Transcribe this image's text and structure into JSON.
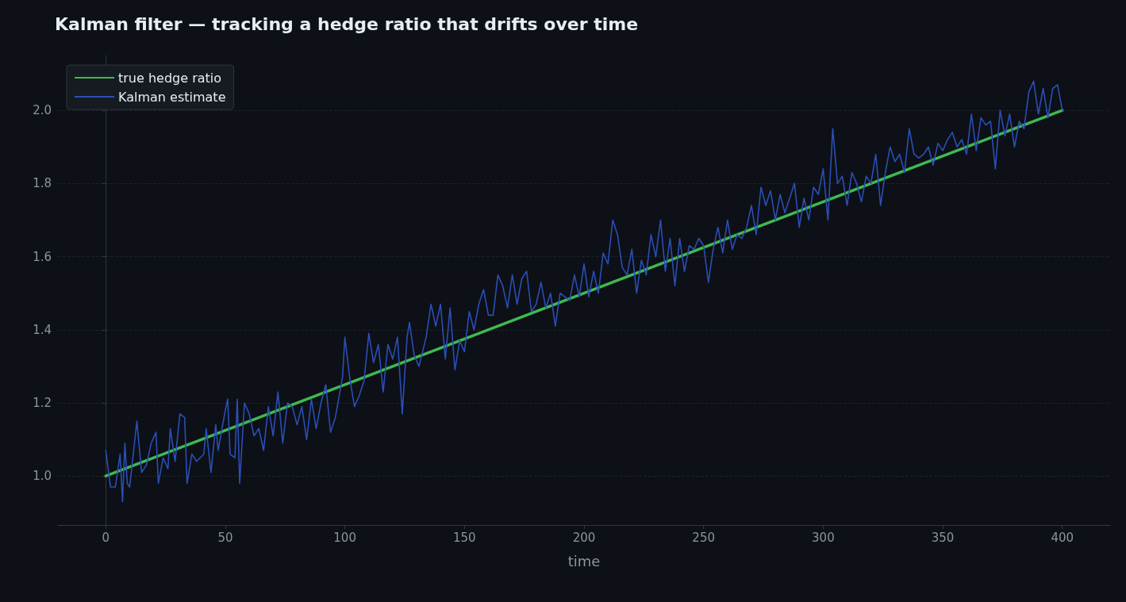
{
  "chart_data": {
    "type": "line",
    "title": "Kalman filter — tracking a hedge ratio that drifts over time",
    "xlabel": "time",
    "xlim": [
      -20,
      420
    ],
    "xticks": [
      0,
      50,
      100,
      150,
      200,
      250,
      300,
      350,
      400
    ],
    "ylim": [
      0.866,
      2.15
    ],
    "yticks": [
      {
        "value": 1,
        "label": "1.0"
      },
      {
        "value": 1.2,
        "label": "1.2"
      },
      {
        "value": 1.4,
        "label": "1.4"
      },
      {
        "value": 1.6,
        "label": "1.6"
      },
      {
        "value": 1.8,
        "label": "1.8"
      },
      {
        "value": 2,
        "label": "2.0"
      }
    ],
    "grid": "y",
    "legend": "top left",
    "series": [
      {
        "name": "true hedge ratio",
        "color": "#3fb950",
        "x": [
          0,
          400
        ],
        "values": [
          1,
          2
        ]
      },
      {
        "name": "Kalman estimate",
        "color": "#2a4fb5",
        "x": [
          0,
          2,
          4,
          6,
          7,
          8,
          9,
          10,
          13,
          15,
          17,
          19,
          21,
          22,
          24,
          26,
          27,
          29,
          31,
          33,
          34,
          36,
          38,
          41,
          42,
          44,
          46,
          47,
          50,
          51,
          52,
          54,
          55,
          56,
          58,
          60,
          62,
          64,
          66,
          68,
          70,
          72,
          74,
          76,
          78,
          80,
          82,
          84,
          86,
          88,
          90,
          92,
          94,
          96,
          99,
          100,
          102,
          104,
          106,
          108,
          110,
          112,
          114,
          116,
          118,
          120,
          122,
          124,
          126,
          127,
          129,
          131,
          134,
          136,
          138,
          140,
          142,
          144,
          146,
          148,
          150,
          152,
          154,
          156,
          158,
          160,
          162,
          164,
          166,
          168,
          170,
          172,
          174,
          176,
          178,
          180,
          182,
          184,
          186,
          188,
          190,
          194,
          196,
          198,
          200,
          202,
          204,
          206,
          208,
          210,
          212,
          214,
          216,
          218,
          220,
          222,
          224,
          226,
          228,
          230,
          232,
          234,
          236,
          238,
          240,
          242,
          244,
          246,
          248,
          250,
          252,
          254,
          256,
          258,
          260,
          262,
          264,
          266,
          268,
          270,
          272,
          274,
          276,
          278,
          280,
          282,
          284,
          286,
          288,
          290,
          292,
          294,
          296,
          298,
          300,
          302,
          304,
          306,
          308,
          310,
          312,
          314,
          316,
          318,
          320,
          322,
          324,
          326,
          328,
          330,
          332,
          334,
          336,
          338,
          340,
          342,
          344,
          346,
          348,
          350,
          352,
          354,
          356,
          358,
          360,
          362,
          364,
          366,
          368,
          370,
          372,
          374,
          376,
          378,
          380,
          382,
          384,
          386,
          388,
          390,
          392,
          394,
          396,
          398,
          400
        ],
        "values": [
          1.07,
          0.97,
          0.97,
          1.06,
          0.93,
          1.09,
          0.98,
          0.97,
          1.15,
          1.01,
          1.03,
          1.09,
          1.12,
          0.98,
          1.05,
          1.02,
          1.13,
          1.04,
          1.17,
          1.16,
          0.98,
          1.06,
          1.04,
          1.06,
          1.13,
          1.01,
          1.14,
          1.07,
          1.18,
          1.21,
          1.06,
          1.05,
          1.21,
          0.98,
          1.2,
          1.17,
          1.11,
          1.13,
          1.07,
          1.19,
          1.11,
          1.23,
          1.09,
          1.2,
          1.19,
          1.14,
          1.19,
          1.1,
          1.21,
          1.13,
          1.2,
          1.25,
          1.12,
          1.16,
          1.27,
          1.38,
          1.27,
          1.19,
          1.22,
          1.26,
          1.39,
          1.31,
          1.36,
          1.23,
          1.36,
          1.32,
          1.38,
          1.17,
          1.38,
          1.42,
          1.33,
          1.3,
          1.38,
          1.47,
          1.41,
          1.47,
          1.32,
          1.46,
          1.29,
          1.37,
          1.34,
          1.45,
          1.4,
          1.47,
          1.51,
          1.44,
          1.44,
          1.55,
          1.52,
          1.46,
          1.55,
          1.47,
          1.54,
          1.56,
          1.45,
          1.47,
          1.53,
          1.46,
          1.5,
          1.41,
          1.5,
          1.48,
          1.55,
          1.49,
          1.58,
          1.49,
          1.56,
          1.5,
          1.61,
          1.58,
          1.7,
          1.66,
          1.57,
          1.55,
          1.62,
          1.5,
          1.59,
          1.55,
          1.66,
          1.6,
          1.7,
          1.56,
          1.65,
          1.52,
          1.65,
          1.56,
          1.63,
          1.62,
          1.65,
          1.63,
          1.53,
          1.62,
          1.68,
          1.61,
          1.7,
          1.62,
          1.66,
          1.65,
          1.68,
          1.74,
          1.66,
          1.79,
          1.74,
          1.78,
          1.7,
          1.77,
          1.72,
          1.76,
          1.8,
          1.68,
          1.76,
          1.7,
          1.79,
          1.77,
          1.84,
          1.7,
          1.95,
          1.8,
          1.82,
          1.74,
          1.83,
          1.8,
          1.75,
          1.82,
          1.8,
          1.88,
          1.74,
          1.83,
          1.9,
          1.86,
          1.88,
          1.83,
          1.95,
          1.88,
          1.87,
          1.88,
          1.9,
          1.85,
          1.91,
          1.89,
          1.92,
          1.94,
          1.9,
          1.92,
          1.88,
          1.99,
          1.89,
          1.98,
          1.96,
          1.97,
          1.84,
          2.0,
          1.93,
          1.99,
          1.9,
          1.97,
          1.95,
          2.05,
          2.08,
          1.99,
          2.06,
          1.98,
          2.06,
          2.07,
          2.0
        ]
      }
    ]
  }
}
